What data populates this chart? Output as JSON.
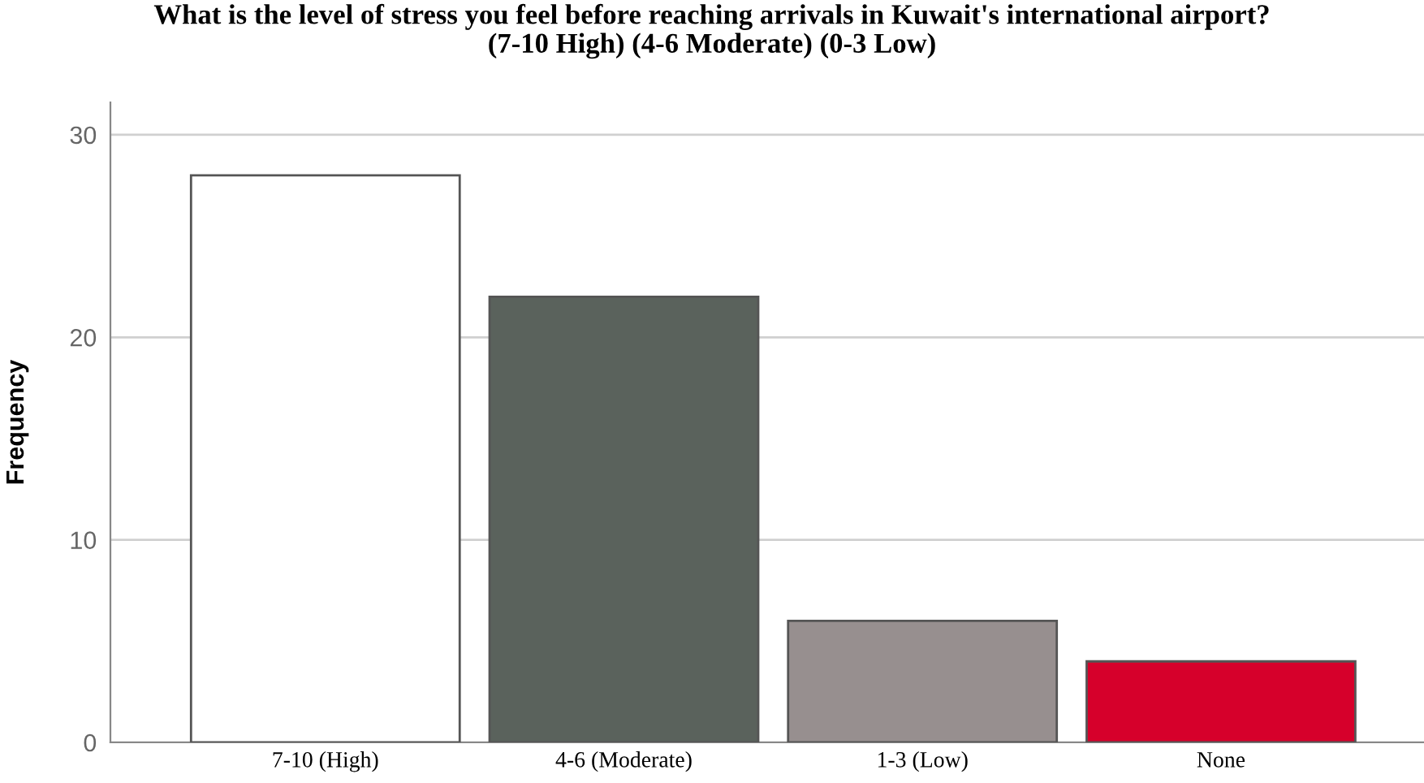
{
  "chart_data": {
    "type": "bar",
    "title": "What is the level of stress you feel before reaching arrivals in Kuwait's international airport?\n(7-10 High) (4-6 Moderate) (0-3 Low)",
    "ylabel": "Frequency",
    "categories": [
      "7-10 (High)",
      "4-6 (Moderate)",
      "1-3 (Low)",
      "None"
    ],
    "values": [
      28,
      22,
      6,
      4
    ],
    "colors": [
      "#ffffff",
      "#5a625c",
      "#978f8f",
      "#d6002b"
    ],
    "ylim": [
      0,
      31.6
    ],
    "yticks": [
      0,
      10,
      20,
      30
    ],
    "grid": "y",
    "legend": false
  }
}
